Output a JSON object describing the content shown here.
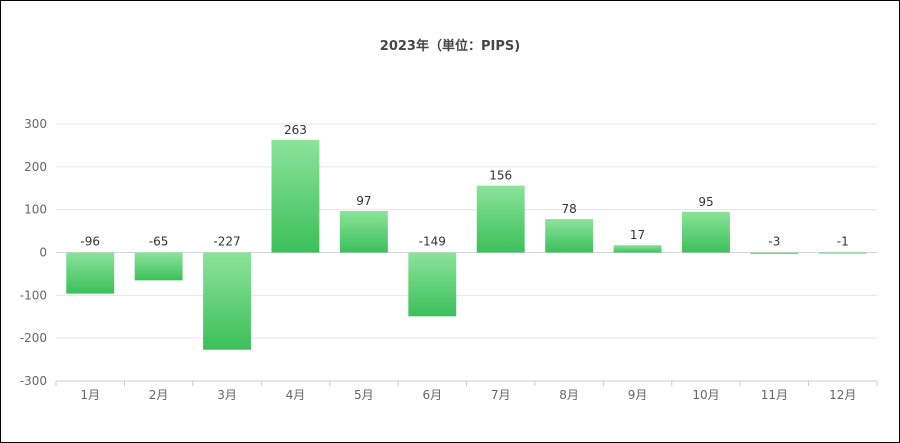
{
  "chart_data": {
    "type": "bar",
    "title": "2023年（単位：PIPS)",
    "categories": [
      "1月",
      "2月",
      "3月",
      "4月",
      "5月",
      "6月",
      "7月",
      "8月",
      "9月",
      "10月",
      "11月",
      "12月"
    ],
    "values": [
      -96,
      -65,
      -227,
      263,
      97,
      -149,
      156,
      78,
      17,
      95,
      -3,
      -1
    ],
    "ylim": [
      -300,
      300
    ],
    "yticks": [
      300,
      200,
      100,
      0,
      -100,
      -200,
      -300
    ],
    "grid": true,
    "bar_gradient": [
      "#8be39a",
      "#3cc05a"
    ]
  }
}
